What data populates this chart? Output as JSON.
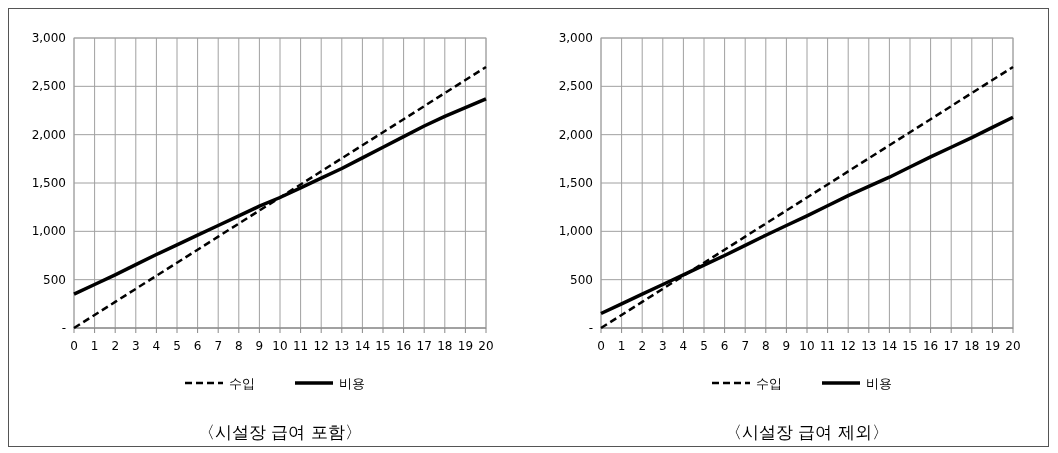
{
  "chart_data": [
    {
      "type": "line",
      "title": "〈시설장 급여 포함〉",
      "x": [
        0,
        1,
        2,
        3,
        4,
        5,
        6,
        7,
        8,
        9,
        10,
        11,
        12,
        13,
        14,
        15,
        16,
        17,
        18,
        19,
        20
      ],
      "xlim": [
        0,
        20
      ],
      "xticks": [
        0,
        1,
        2,
        3,
        4,
        5,
        6,
        7,
        8,
        9,
        10,
        11,
        12,
        13,
        14,
        15,
        16,
        17,
        18,
        19,
        20
      ],
      "ylim": [
        0,
        3000
      ],
      "yticks": [
        {
          "value": 0,
          "label": "-"
        },
        {
          "value": 500,
          "label": "500"
        },
        {
          "value": 1000,
          "label": "1,000"
        },
        {
          "value": 1500,
          "label": "1,500"
        },
        {
          "value": 2000,
          "label": "2,000"
        },
        {
          "value": 2500,
          "label": "2,500"
        },
        {
          "value": 3000,
          "label": "3,000"
        }
      ],
      "grid": true,
      "legend": "bottom",
      "series": [
        {
          "name": "수입",
          "color": "#000000",
          "line_style": "dashed",
          "values": [
            0,
            135,
            270,
            405,
            540,
            675,
            810,
            945,
            1080,
            1215,
            1350,
            1485,
            1620,
            1755,
            1890,
            2025,
            2160,
            2295,
            2430,
            2565,
            2700
          ]
        },
        {
          "name": "비용",
          "color": "#000000",
          "line_style": "solid",
          "values": [
            350,
            450,
            550,
            655,
            760,
            860,
            960,
            1060,
            1160,
            1260,
            1350,
            1450,
            1550,
            1650,
            1760,
            1870,
            1980,
            2090,
            2190,
            2280,
            2370
          ]
        }
      ]
    },
    {
      "type": "line",
      "title": "〈시설장 급여 제외〉",
      "x": [
        0,
        1,
        2,
        3,
        4,
        5,
        6,
        7,
        8,
        9,
        10,
        11,
        12,
        13,
        14,
        15,
        16,
        17,
        18,
        19,
        20
      ],
      "xlim": [
        0,
        20
      ],
      "xticks": [
        0,
        1,
        2,
        3,
        4,
        5,
        6,
        7,
        8,
        9,
        10,
        11,
        12,
        13,
        14,
        15,
        16,
        17,
        18,
        19,
        20
      ],
      "ylim": [
        0,
        3000
      ],
      "yticks": [
        {
          "value": 0,
          "label": "-"
        },
        {
          "value": 500,
          "label": "500"
        },
        {
          "value": 1000,
          "label": "1,000"
        },
        {
          "value": 1500,
          "label": "1,500"
        },
        {
          "value": 2000,
          "label": "2,000"
        },
        {
          "value": 2500,
          "label": "2,500"
        },
        {
          "value": 3000,
          "label": "3,000"
        }
      ],
      "grid": true,
      "legend": "bottom",
      "series": [
        {
          "name": "수입",
          "color": "#000000",
          "line_style": "dashed",
          "values": [
            0,
            135,
            270,
            405,
            540,
            675,
            810,
            945,
            1080,
            1215,
            1350,
            1485,
            1620,
            1755,
            1890,
            2025,
            2160,
            2295,
            2430,
            2565,
            2700
          ]
        },
        {
          "name": "비용",
          "color": "#000000",
          "line_style": "solid",
          "values": [
            150,
            250,
            350,
            450,
            550,
            650,
            750,
            855,
            960,
            1060,
            1160,
            1265,
            1370,
            1465,
            1560,
            1665,
            1770,
            1870,
            1970,
            2075,
            2180
          ]
        }
      ]
    }
  ]
}
